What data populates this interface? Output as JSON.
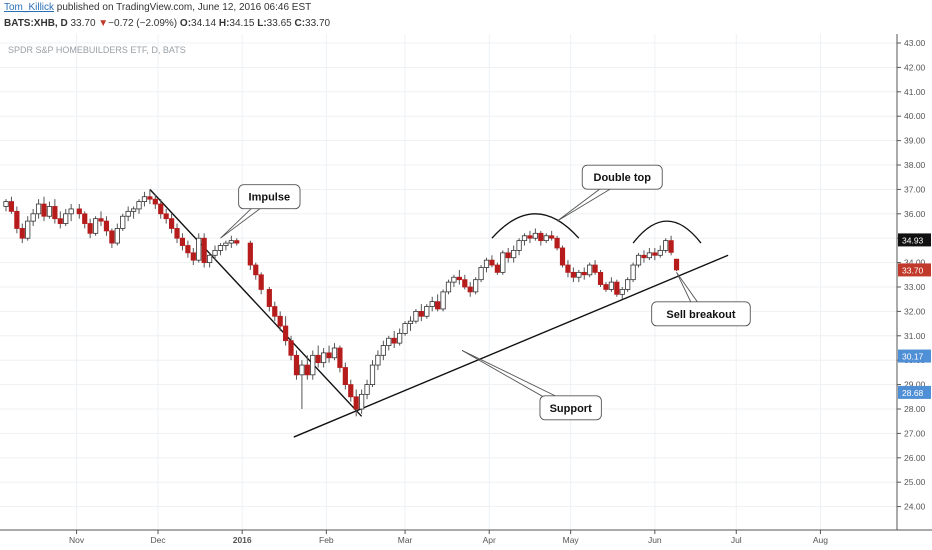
{
  "header": {
    "author": "Tom_Killick",
    "published": " published on TradingView.com, June 12, 2016 06:46 EST",
    "symbol": "BATS:XHB, D",
    "last": "33.70",
    "change_arrow": "▼",
    "change": "−0.72 (−2.09%)",
    "ohlc": [
      {
        "label": "O:",
        "value": "34.14"
      },
      {
        "label": "H:",
        "value": "34.15"
      },
      {
        "label": "L:",
        "value": "33.65"
      },
      {
        "label": "C:",
        "value": "33.70"
      }
    ]
  },
  "chart_data": {
    "type": "candlestick",
    "title": "SPDR S&P HOMEBUILDERS ETF, D, BATS",
    "ylim": [
      23.5,
      43.2
    ],
    "y_ticks": [
      "24.00",
      "25.00",
      "26.00",
      "27.00",
      "28.00",
      "29.00",
      "30.00",
      "31.00",
      "32.00",
      "33.00",
      "34.00",
      "35.00",
      "36.00",
      "37.00",
      "38.00",
      "39.00",
      "40.00",
      "41.00",
      "42.00",
      "43.00"
    ],
    "x_tick_labels": [
      "Nov",
      "Dec",
      "2016",
      "Feb",
      "Mar",
      "Apr",
      "May",
      "Jun",
      "Jul",
      "Aug"
    ],
    "x_tick_dates": [
      "2015-11-01",
      "2015-12-01",
      "2016-01-01",
      "2016-02-01",
      "2016-03-01",
      "2016-04-01",
      "2016-05-01",
      "2016-06-01",
      "2016-07-01",
      "2016-08-01"
    ],
    "x_range": [
      "2015-10-06",
      "2016-08-20"
    ],
    "price_labels": [
      {
        "value": 34.93,
        "text": "34.93",
        "color": "#111111"
      },
      {
        "value": 33.7,
        "text": "33.70",
        "color": "#c0392b"
      },
      {
        "value": 30.17,
        "text": "30.17",
        "color": "#4f8fd6"
      },
      {
        "value": 28.68,
        "text": "28.68",
        "color": "#4f8fd6"
      }
    ],
    "colors": {
      "up": "#ffffff",
      "down": "#b71c1c",
      "wick": "#555555",
      "grid": "#eef1f4",
      "axis": "#555555"
    },
    "candles": [
      {
        "d": "2015-10-06",
        "o": 36.3,
        "h": 36.6,
        "l": 36.1,
        "c": 36.5
      },
      {
        "d": "2015-10-08",
        "o": 36.5,
        "h": 36.7,
        "l": 36.0,
        "c": 36.1
      },
      {
        "d": "2015-10-10",
        "o": 36.1,
        "h": 36.3,
        "l": 35.2,
        "c": 35.4
      },
      {
        "d": "2015-10-12",
        "o": 35.4,
        "h": 35.6,
        "l": 34.8,
        "c": 35.0
      },
      {
        "d": "2015-10-14",
        "o": 35.0,
        "h": 35.9,
        "l": 34.9,
        "c": 35.7
      },
      {
        "d": "2015-10-16",
        "o": 35.7,
        "h": 36.2,
        "l": 35.5,
        "c": 36.0
      },
      {
        "d": "2015-10-18",
        "o": 36.0,
        "h": 36.6,
        "l": 35.8,
        "c": 36.4
      },
      {
        "d": "2015-10-20",
        "o": 36.4,
        "h": 36.7,
        "l": 35.7,
        "c": 35.9
      },
      {
        "d": "2015-10-22",
        "o": 35.9,
        "h": 36.5,
        "l": 35.8,
        "c": 36.3
      },
      {
        "d": "2015-10-24",
        "o": 36.3,
        "h": 36.6,
        "l": 35.6,
        "c": 35.8
      },
      {
        "d": "2015-10-26",
        "o": 35.8,
        "h": 36.1,
        "l": 35.4,
        "c": 35.6
      },
      {
        "d": "2015-10-28",
        "o": 35.6,
        "h": 36.2,
        "l": 35.5,
        "c": 36.0
      },
      {
        "d": "2015-10-30",
        "o": 36.0,
        "h": 36.4,
        "l": 35.7,
        "c": 36.2
      },
      {
        "d": "2015-11-02",
        "o": 36.2,
        "h": 36.4,
        "l": 35.8,
        "c": 36.0
      },
      {
        "d": "2015-11-04",
        "o": 36.0,
        "h": 36.1,
        "l": 35.4,
        "c": 35.6
      },
      {
        "d": "2015-11-06",
        "o": 35.6,
        "h": 35.8,
        "l": 35.0,
        "c": 35.2
      },
      {
        "d": "2015-11-08",
        "o": 35.2,
        "h": 35.9,
        "l": 35.1,
        "c": 35.8
      },
      {
        "d": "2015-11-10",
        "o": 35.8,
        "h": 36.1,
        "l": 35.5,
        "c": 35.7
      },
      {
        "d": "2015-11-12",
        "o": 35.7,
        "h": 35.9,
        "l": 35.1,
        "c": 35.3
      },
      {
        "d": "2015-11-14",
        "o": 35.3,
        "h": 35.4,
        "l": 34.6,
        "c": 34.8
      },
      {
        "d": "2015-11-16",
        "o": 34.8,
        "h": 35.6,
        "l": 34.7,
        "c": 35.4
      },
      {
        "d": "2015-11-18",
        "o": 35.4,
        "h": 36.0,
        "l": 35.3,
        "c": 35.9
      },
      {
        "d": "2015-11-20",
        "o": 35.9,
        "h": 36.3,
        "l": 35.7,
        "c": 36.1
      },
      {
        "d": "2015-11-22",
        "o": 36.1,
        "h": 36.3,
        "l": 35.8,
        "c": 36.2
      },
      {
        "d": "2015-11-24",
        "o": 36.2,
        "h": 36.6,
        "l": 36.0,
        "c": 36.5
      },
      {
        "d": "2015-11-26",
        "o": 36.5,
        "h": 36.9,
        "l": 36.3,
        "c": 36.7
      },
      {
        "d": "2015-11-28",
        "o": 36.7,
        "h": 37.0,
        "l": 36.4,
        "c": 36.6
      },
      {
        "d": "2015-11-30",
        "o": 36.6,
        "h": 36.8,
        "l": 36.2,
        "c": 36.4
      },
      {
        "d": "2015-12-02",
        "o": 36.4,
        "h": 36.6,
        "l": 35.8,
        "c": 36.0
      },
      {
        "d": "2015-12-04",
        "o": 36.0,
        "h": 36.2,
        "l": 35.6,
        "c": 35.8
      },
      {
        "d": "2015-12-06",
        "o": 35.8,
        "h": 36.0,
        "l": 35.2,
        "c": 35.4
      },
      {
        "d": "2015-12-08",
        "o": 35.4,
        "h": 35.6,
        "l": 34.8,
        "c": 35.0
      },
      {
        "d": "2015-12-10",
        "o": 35.0,
        "h": 35.2,
        "l": 34.5,
        "c": 34.7
      },
      {
        "d": "2015-12-12",
        "o": 34.7,
        "h": 34.9,
        "l": 34.2,
        "c": 34.4
      },
      {
        "d": "2015-12-14",
        "o": 34.4,
        "h": 34.6,
        "l": 33.9,
        "c": 34.1
      },
      {
        "d": "2015-12-16",
        "o": 34.1,
        "h": 35.2,
        "l": 34.0,
        "c": 35.0
      },
      {
        "d": "2015-12-18",
        "o": 35.0,
        "h": 35.2,
        "l": 33.8,
        "c": 34.0
      },
      {
        "d": "2015-12-20",
        "o": 34.0,
        "h": 34.4,
        "l": 33.8,
        "c": 34.3
      },
      {
        "d": "2015-12-22",
        "o": 34.3,
        "h": 34.7,
        "l": 34.1,
        "c": 34.5
      },
      {
        "d": "2015-12-24",
        "o": 34.5,
        "h": 34.8,
        "l": 34.3,
        "c": 34.7
      },
      {
        "d": "2015-12-26",
        "o": 34.7,
        "h": 34.9,
        "l": 34.5,
        "c": 34.8
      },
      {
        "d": "2015-12-28",
        "o": 34.8,
        "h": 35.1,
        "l": 34.6,
        "c": 34.9
      },
      {
        "d": "2015-12-30",
        "o": 34.9,
        "h": 35.0,
        "l": 34.7,
        "c": 34.8
      },
      {
        "d": "2016-01-04",
        "o": 34.8,
        "h": 34.9,
        "l": 33.7,
        "c": 33.9
      },
      {
        "d": "2016-01-06",
        "o": 33.9,
        "h": 34.0,
        "l": 33.3,
        "c": 33.5
      },
      {
        "d": "2016-01-08",
        "o": 33.5,
        "h": 33.6,
        "l": 32.7,
        "c": 32.9
      },
      {
        "d": "2016-01-11",
        "o": 32.9,
        "h": 33.0,
        "l": 32.0,
        "c": 32.2
      },
      {
        "d": "2016-01-13",
        "o": 32.2,
        "h": 32.4,
        "l": 31.6,
        "c": 31.8
      },
      {
        "d": "2016-01-15",
        "o": 31.8,
        "h": 32.0,
        "l": 31.2,
        "c": 31.4
      },
      {
        "d": "2016-01-17",
        "o": 31.4,
        "h": 31.8,
        "l": 30.6,
        "c": 30.8
      },
      {
        "d": "2016-01-19",
        "o": 30.8,
        "h": 31.0,
        "l": 30.0,
        "c": 30.2
      },
      {
        "d": "2016-01-21",
        "o": 30.2,
        "h": 30.4,
        "l": 29.2,
        "c": 29.4
      },
      {
        "d": "2016-01-23",
        "o": 29.4,
        "h": 30.0,
        "l": 28.0,
        "c": 29.8
      },
      {
        "d": "2016-01-25",
        "o": 29.8,
        "h": 30.2,
        "l": 29.2,
        "c": 29.4
      },
      {
        "d": "2016-01-27",
        "o": 29.4,
        "h": 30.4,
        "l": 29.2,
        "c": 30.2
      },
      {
        "d": "2016-01-29",
        "o": 30.2,
        "h": 30.6,
        "l": 29.7,
        "c": 29.9
      },
      {
        "d": "2016-01-31",
        "o": 29.9,
        "h": 30.5,
        "l": 29.7,
        "c": 30.3
      },
      {
        "d": "2016-02-02",
        "o": 30.3,
        "h": 30.6,
        "l": 29.9,
        "c": 30.1
      },
      {
        "d": "2016-02-04",
        "o": 30.1,
        "h": 30.7,
        "l": 30.0,
        "c": 30.5
      },
      {
        "d": "2016-02-06",
        "o": 30.5,
        "h": 30.6,
        "l": 29.5,
        "c": 29.7
      },
      {
        "d": "2016-02-08",
        "o": 29.7,
        "h": 29.9,
        "l": 28.8,
        "c": 29.0
      },
      {
        "d": "2016-02-10",
        "o": 29.0,
        "h": 29.2,
        "l": 28.3,
        "c": 28.5
      },
      {
        "d": "2016-02-12",
        "o": 28.5,
        "h": 28.8,
        "l": 27.7,
        "c": 28.0
      },
      {
        "d": "2016-02-14",
        "o": 28.0,
        "h": 28.8,
        "l": 27.8,
        "c": 28.6
      },
      {
        "d": "2016-02-16",
        "o": 28.6,
        "h": 29.2,
        "l": 28.4,
        "c": 29.0
      },
      {
        "d": "2016-02-18",
        "o": 29.0,
        "h": 30.0,
        "l": 28.9,
        "c": 29.8
      },
      {
        "d": "2016-02-20",
        "o": 29.8,
        "h": 30.4,
        "l": 29.6,
        "c": 30.2
      },
      {
        "d": "2016-02-22",
        "o": 30.2,
        "h": 30.8,
        "l": 30.0,
        "c": 30.6
      },
      {
        "d": "2016-02-24",
        "o": 30.6,
        "h": 31.0,
        "l": 30.4,
        "c": 30.9
      },
      {
        "d": "2016-02-26",
        "o": 30.9,
        "h": 31.2,
        "l": 30.5,
        "c": 30.7
      },
      {
        "d": "2016-02-28",
        "o": 30.7,
        "h": 31.3,
        "l": 30.6,
        "c": 31.1
      },
      {
        "d": "2016-03-01",
        "o": 31.1,
        "h": 31.6,
        "l": 31.0,
        "c": 31.5
      },
      {
        "d": "2016-03-03",
        "o": 31.5,
        "h": 31.8,
        "l": 31.2,
        "c": 31.6
      },
      {
        "d": "2016-03-05",
        "o": 31.6,
        "h": 32.1,
        "l": 31.5,
        "c": 32.0
      },
      {
        "d": "2016-03-07",
        "o": 32.0,
        "h": 32.3,
        "l": 31.6,
        "c": 31.8
      },
      {
        "d": "2016-03-09",
        "o": 31.8,
        "h": 32.3,
        "l": 31.7,
        "c": 32.2
      },
      {
        "d": "2016-03-11",
        "o": 32.2,
        "h": 32.6,
        "l": 32.0,
        "c": 32.4
      },
      {
        "d": "2016-03-13",
        "o": 32.4,
        "h": 32.7,
        "l": 32.0,
        "c": 32.1
      },
      {
        "d": "2016-03-15",
        "o": 32.1,
        "h": 32.9,
        "l": 32.0,
        "c": 32.8
      },
      {
        "d": "2016-03-17",
        "o": 32.8,
        "h": 33.3,
        "l": 32.7,
        "c": 33.2
      },
      {
        "d": "2016-03-19",
        "o": 33.2,
        "h": 33.5,
        "l": 33.0,
        "c": 33.4
      },
      {
        "d": "2016-03-21",
        "o": 33.4,
        "h": 33.7,
        "l": 33.1,
        "c": 33.3
      },
      {
        "d": "2016-03-23",
        "o": 33.3,
        "h": 33.5,
        "l": 32.9,
        "c": 33.0
      },
      {
        "d": "2016-03-25",
        "o": 33.0,
        "h": 33.2,
        "l": 32.6,
        "c": 32.8
      },
      {
        "d": "2016-03-27",
        "o": 32.8,
        "h": 33.4,
        "l": 32.7,
        "c": 33.3
      },
      {
        "d": "2016-03-29",
        "o": 33.3,
        "h": 33.9,
        "l": 33.2,
        "c": 33.8
      },
      {
        "d": "2016-03-31",
        "o": 33.8,
        "h": 34.2,
        "l": 33.6,
        "c": 34.1
      },
      {
        "d": "2016-04-02",
        "o": 34.1,
        "h": 34.3,
        "l": 33.8,
        "c": 33.9
      },
      {
        "d": "2016-04-04",
        "o": 33.9,
        "h": 34.0,
        "l": 33.5,
        "c": 33.6
      },
      {
        "d": "2016-04-06",
        "o": 33.6,
        "h": 34.5,
        "l": 33.5,
        "c": 34.4
      },
      {
        "d": "2016-04-08",
        "o": 34.4,
        "h": 34.6,
        "l": 34.0,
        "c": 34.2
      },
      {
        "d": "2016-04-10",
        "o": 34.2,
        "h": 34.7,
        "l": 34.0,
        "c": 34.5
      },
      {
        "d": "2016-04-12",
        "o": 34.5,
        "h": 35.0,
        "l": 34.3,
        "c": 34.9
      },
      {
        "d": "2016-04-14",
        "o": 34.9,
        "h": 35.2,
        "l": 34.7,
        "c": 35.1
      },
      {
        "d": "2016-04-16",
        "o": 35.1,
        "h": 35.3,
        "l": 34.8,
        "c": 35.0
      },
      {
        "d": "2016-04-18",
        "o": 35.0,
        "h": 35.4,
        "l": 34.9,
        "c": 35.2
      },
      {
        "d": "2016-04-20",
        "o": 35.2,
        "h": 35.3,
        "l": 34.7,
        "c": 34.9
      },
      {
        "d": "2016-04-22",
        "o": 34.9,
        "h": 35.2,
        "l": 34.8,
        "c": 35.1
      },
      {
        "d": "2016-04-24",
        "o": 35.1,
        "h": 35.3,
        "l": 34.9,
        "c": 35.0
      },
      {
        "d": "2016-04-26",
        "o": 35.0,
        "h": 35.1,
        "l": 34.5,
        "c": 34.6
      },
      {
        "d": "2016-04-28",
        "o": 34.6,
        "h": 34.7,
        "l": 33.8,
        "c": 33.9
      },
      {
        "d": "2016-04-30",
        "o": 33.9,
        "h": 34.1,
        "l": 33.4,
        "c": 33.6
      },
      {
        "d": "2016-05-02",
        "o": 33.6,
        "h": 33.8,
        "l": 33.2,
        "c": 33.4
      },
      {
        "d": "2016-05-04",
        "o": 33.4,
        "h": 33.7,
        "l": 33.2,
        "c": 33.6
      },
      {
        "d": "2016-05-06",
        "o": 33.6,
        "h": 33.8,
        "l": 33.3,
        "c": 33.5
      },
      {
        "d": "2016-05-08",
        "o": 33.5,
        "h": 34.0,
        "l": 33.4,
        "c": 33.9
      },
      {
        "d": "2016-05-10",
        "o": 33.9,
        "h": 34.1,
        "l": 33.5,
        "c": 33.6
      },
      {
        "d": "2016-05-12",
        "o": 33.6,
        "h": 33.7,
        "l": 33.0,
        "c": 33.1
      },
      {
        "d": "2016-05-14",
        "o": 33.1,
        "h": 33.2,
        "l": 32.8,
        "c": 32.9
      },
      {
        "d": "2016-05-16",
        "o": 32.9,
        "h": 33.4,
        "l": 32.8,
        "c": 33.2
      },
      {
        "d": "2016-05-18",
        "o": 33.2,
        "h": 33.3,
        "l": 32.6,
        "c": 32.7
      },
      {
        "d": "2016-05-20",
        "o": 32.7,
        "h": 33.0,
        "l": 32.5,
        "c": 32.9
      },
      {
        "d": "2016-05-22",
        "o": 32.9,
        "h": 33.4,
        "l": 32.8,
        "c": 33.3
      },
      {
        "d": "2016-05-24",
        "o": 33.3,
        "h": 34.0,
        "l": 33.2,
        "c": 33.9
      },
      {
        "d": "2016-05-26",
        "o": 33.9,
        "h": 34.4,
        "l": 33.8,
        "c": 34.3
      },
      {
        "d": "2016-05-28",
        "o": 34.3,
        "h": 34.5,
        "l": 34.0,
        "c": 34.2
      },
      {
        "d": "2016-05-30",
        "o": 34.2,
        "h": 34.6,
        "l": 34.1,
        "c": 34.4
      },
      {
        "d": "2016-06-01",
        "o": 34.4,
        "h": 34.6,
        "l": 34.1,
        "c": 34.3
      },
      {
        "d": "2016-06-03",
        "o": 34.3,
        "h": 34.7,
        "l": 34.2,
        "c": 34.5
      },
      {
        "d": "2016-06-05",
        "o": 34.5,
        "h": 35.0,
        "l": 34.4,
        "c": 34.9
      },
      {
        "d": "2016-06-07",
        "o": 34.9,
        "h": 35.1,
        "l": 34.3,
        "c": 34.42
      },
      {
        "d": "2016-06-09",
        "o": 34.14,
        "h": 34.15,
        "l": 33.65,
        "c": 33.7
      }
    ],
    "trendlines": [
      {
        "name": "impulse-line",
        "from": {
          "d": "2015-11-28",
          "v": 37.0
        },
        "to": {
          "d": "2016-02-14",
          "v": 27.7
        }
      },
      {
        "name": "support-line",
        "from": {
          "d": "2016-01-20",
          "v": 26.85
        },
        "to": {
          "d": "2016-06-28",
          "v": 34.3
        }
      }
    ],
    "arcs": [
      {
        "name": "double-top-arc-1",
        "from": {
          "d": "2016-04-02",
          "v": 35.0
        },
        "to": {
          "d": "2016-05-04",
          "v": 35.0
        },
        "peak": 36.0
      },
      {
        "name": "double-top-arc-2",
        "from": {
          "d": "2016-05-24",
          "v": 34.8
        },
        "to": {
          "d": "2016-06-18",
          "v": 34.8
        },
        "peak": 35.7
      }
    ],
    "annotations": [
      {
        "name": "impulse-callout",
        "text": "Impulse",
        "box": {
          "d": "2016-01-11",
          "v": 36.7
        },
        "target": {
          "d": "2015-12-24",
          "v": 35.0
        }
      },
      {
        "name": "double-top-callout",
        "text": "Double top",
        "box": {
          "d": "2016-05-20",
          "v": 37.5
        },
        "target": {
          "d": "2016-04-26",
          "v": 35.7
        }
      },
      {
        "name": "sell-breakout-callout",
        "text": "Sell breakout",
        "box": {
          "d": "2016-06-18",
          "v": 31.9
        },
        "target": {
          "d": "2016-06-09",
          "v": 33.6
        }
      },
      {
        "name": "support-callout",
        "text": "Support",
        "box": {
          "d": "2016-05-01",
          "v": 28.05
        },
        "target": {
          "d": "2016-03-22",
          "v": 30.4
        }
      }
    ]
  }
}
